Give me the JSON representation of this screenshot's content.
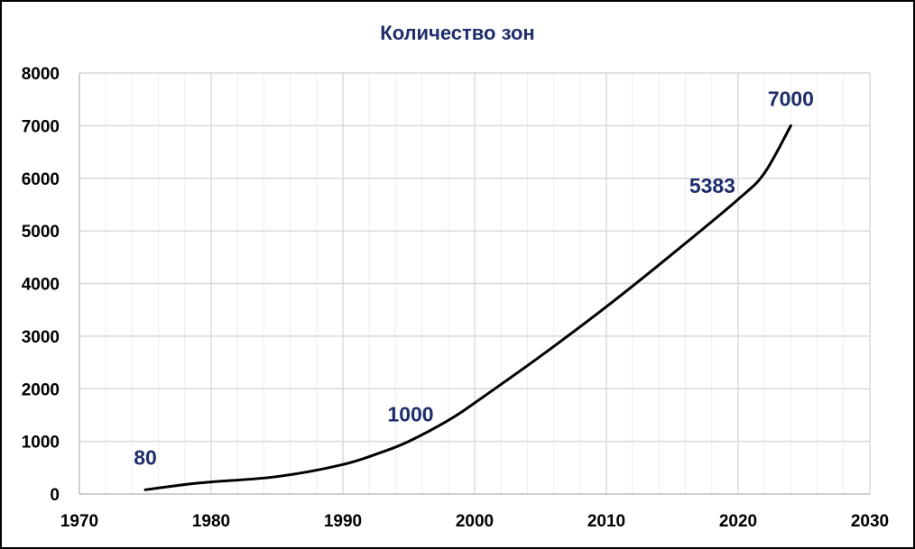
{
  "chart_data": {
    "type": "line",
    "title": "Количество зон",
    "xlabel": "",
    "ylabel": "",
    "xlim": [
      1970,
      2030
    ],
    "ylim": [
      0,
      8000
    ],
    "x_ticks": [
      1970,
      1980,
      1990,
      2000,
      2010,
      2020,
      2030
    ],
    "y_ticks": [
      0,
      1000,
      2000,
      3000,
      4000,
      5000,
      6000,
      7000,
      8000
    ],
    "x_minor_step": 2,
    "grid": true,
    "legend": "none",
    "series": [
      {
        "x": [
          1975,
          1978,
          1980,
          1985,
          1990,
          1993,
          1995,
          1998,
          2000,
          2005,
          2010,
          2015,
          2020,
          2022,
          2024
        ],
        "values": [
          80,
          180,
          230,
          330,
          560,
          800,
          1000,
          1400,
          1730,
          2620,
          3560,
          4560,
          5600,
          6100,
          7000
        ],
        "color": "#000000"
      }
    ],
    "data_labels": [
      {
        "x": 1975,
        "y": 80,
        "text": "80"
      },
      {
        "x": 1995,
        "y": 1000,
        "text": "1000"
      },
      {
        "x": 2019,
        "y": 5383,
        "text": "5383"
      },
      {
        "x": 2024,
        "y": 7000,
        "text": "7000"
      }
    ],
    "colors": {
      "title": "#1F2D6B",
      "label": "#1F2D6B",
      "line": "#000000",
      "grid_major": "#D9D9D9",
      "grid_minor": "#ECECEC",
      "axis": "#BFBFBF"
    }
  }
}
